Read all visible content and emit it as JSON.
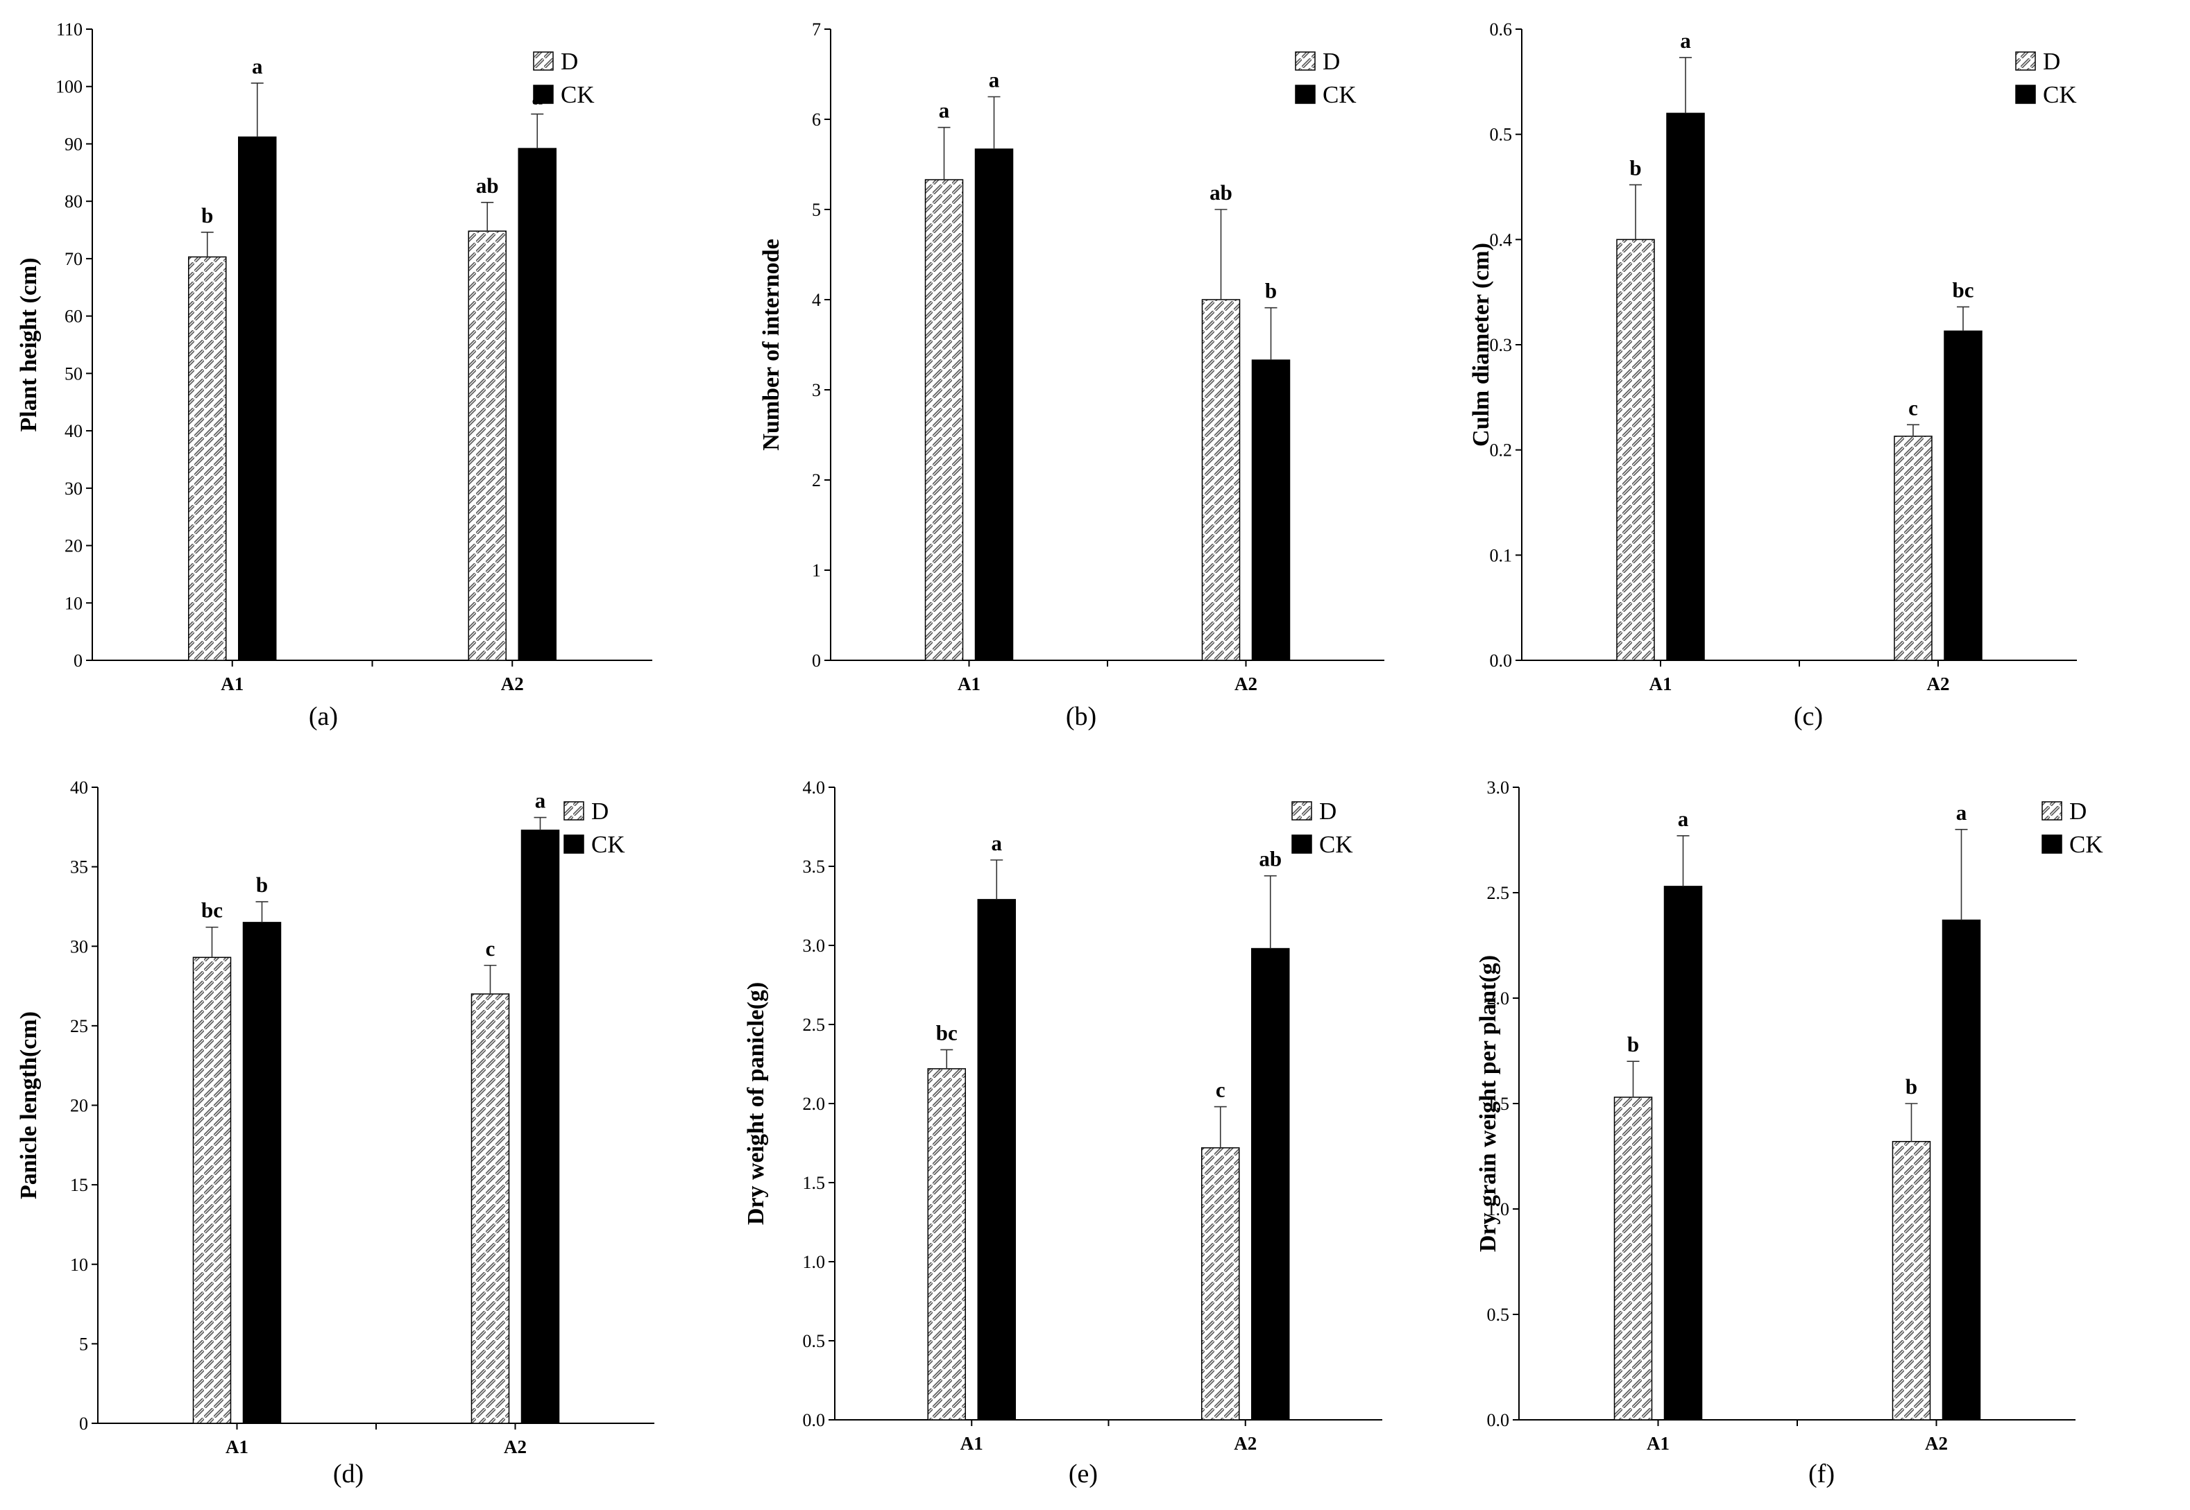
{
  "chart_data": [
    {
      "type": "bar",
      "panel_label": "(a)",
      "title": "",
      "xlabel": "",
      "ylabel": "Plant height (cm)",
      "categories": [
        "A1",
        "A2"
      ],
      "ylim": [
        0,
        110
      ],
      "yticks": [
        "0",
        "10",
        "20",
        "30",
        "40",
        "50",
        "60",
        "70",
        "80",
        "90",
        "100",
        "110"
      ],
      "legend": [
        "D",
        "CK"
      ],
      "legend_position": "top-right",
      "series": [
        {
          "name": "D",
          "values": [
            70.3,
            74.8
          ],
          "errors": [
            4.3,
            5.0
          ],
          "labels": [
            "b",
            "ab"
          ]
        },
        {
          "name": "CK",
          "values": [
            91.2,
            89.2
          ],
          "errors": [
            9.4,
            6.0
          ],
          "labels": [
            "a",
            "a"
          ]
        }
      ]
    },
    {
      "type": "bar",
      "panel_label": "(b)",
      "title": "",
      "xlabel": "",
      "ylabel": "Number of internode",
      "categories": [
        "A1",
        "A2"
      ],
      "ylim": [
        0,
        7
      ],
      "yticks": [
        "0",
        "1",
        "2",
        "3",
        "4",
        "5",
        "6",
        "7"
      ],
      "legend": [
        "D",
        "CK"
      ],
      "legend_position": "top-right",
      "series": [
        {
          "name": "D",
          "values": [
            5.33,
            4.0
          ],
          "errors": [
            0.58,
            1.0
          ],
          "labels": [
            "a",
            "ab"
          ]
        },
        {
          "name": "CK",
          "values": [
            5.67,
            3.33
          ],
          "errors": [
            0.58,
            0.58
          ],
          "labels": [
            "a",
            "b"
          ]
        }
      ]
    },
    {
      "type": "bar",
      "panel_label": "(c)",
      "title": "",
      "xlabel": "",
      "ylabel": "Culm diameter (cm)",
      "categories": [
        "A1",
        "A2"
      ],
      "ylim": [
        0,
        0.6
      ],
      "yticks": [
        "0.0",
        "0.1",
        "0.2",
        "0.3",
        "0.4",
        "0.5",
        "0.6"
      ],
      "legend": [
        "D",
        "CK"
      ],
      "legend_position": "top-right",
      "series": [
        {
          "name": "D",
          "values": [
            0.4,
            0.213
          ],
          "errors": [
            0.052,
            0.011
          ],
          "labels": [
            "b",
            "c"
          ]
        },
        {
          "name": "CK",
          "values": [
            0.52,
            0.313
          ],
          "errors": [
            0.053,
            0.023
          ],
          "labels": [
            "a",
            "bc"
          ]
        }
      ]
    },
    {
      "type": "bar",
      "panel_label": "(d)",
      "title": "",
      "xlabel": "",
      "ylabel": "Panicle length(cm)",
      "categories": [
        "A1",
        "A2"
      ],
      "ylim": [
        0,
        40
      ],
      "yticks": [
        "0",
        "5",
        "10",
        "15",
        "20",
        "25",
        "30",
        "35",
        "40"
      ],
      "legend": [
        "D",
        "CK"
      ],
      "legend_position": "top-right",
      "series": [
        {
          "name": "D",
          "values": [
            29.3,
            27.0
          ],
          "errors": [
            1.9,
            1.8
          ],
          "labels": [
            "bc",
            "c"
          ]
        },
        {
          "name": "CK",
          "values": [
            31.5,
            37.3
          ],
          "errors": [
            1.3,
            0.8
          ],
          "labels": [
            "b",
            "a"
          ]
        }
      ]
    },
    {
      "type": "bar",
      "panel_label": "(e)",
      "title": "",
      "xlabel": "",
      "ylabel": "Dry weight of panicle(g)",
      "categories": [
        "A1",
        "A2"
      ],
      "ylim": [
        0,
        4
      ],
      "yticks": [
        "0.0",
        "0.5",
        "1.0",
        "1.5",
        "2.0",
        "2.5",
        "3.0",
        "3.5",
        "4.0"
      ],
      "legend": [
        "D",
        "CK"
      ],
      "legend_position": "top-right",
      "series": [
        {
          "name": "D",
          "values": [
            2.22,
            1.72
          ],
          "errors": [
            0.12,
            0.26
          ],
          "labels": [
            "bc",
            "c"
          ]
        },
        {
          "name": "CK",
          "values": [
            3.29,
            2.98
          ],
          "errors": [
            0.25,
            0.46
          ],
          "labels": [
            "a",
            "ab"
          ]
        }
      ]
    },
    {
      "type": "bar",
      "panel_label": "(f)",
      "title": "",
      "xlabel": "",
      "ylabel": "Dry grain weight per plant(g)",
      "categories": [
        "A1",
        "A2"
      ],
      "ylim": [
        0,
        3
      ],
      "yticks": [
        "0.0",
        "0.5",
        "1.0",
        "1.5",
        "2.0",
        "2.5",
        "3.0"
      ],
      "legend": [
        "D",
        "CK"
      ],
      "legend_position": "top-right",
      "series": [
        {
          "name": "D",
          "values": [
            1.53,
            1.32
          ],
          "errors": [
            0.17,
            0.18
          ],
          "labels": [
            "b",
            "b"
          ]
        },
        {
          "name": "CK",
          "values": [
            2.53,
            2.37
          ],
          "errors": [
            0.24,
            0.43
          ],
          "labels": [
            "a",
            "a"
          ]
        }
      ]
    }
  ],
  "colors": {
    "D": "#ffffff",
    "CK": "#000000",
    "axis": "#000000",
    "hatch": "#555555"
  }
}
